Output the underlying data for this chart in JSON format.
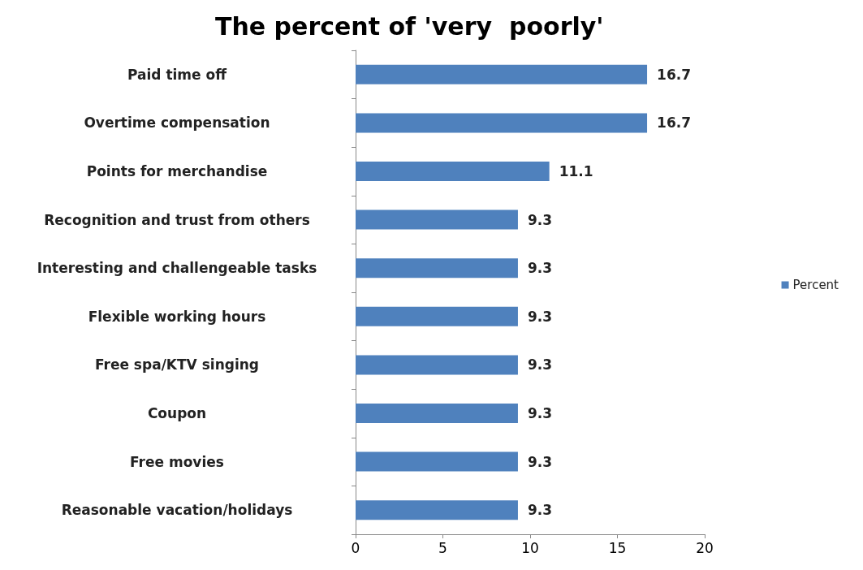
{
  "chart_data": {
    "type": "bar",
    "orientation": "horizontal",
    "title": "The percent of 'very  poorly'",
    "categories": [
      "Paid time off",
      "Overtime compensation",
      "Points for merchandise",
      "Recognition and trust from others",
      "Interesting and challengeable tasks",
      "Flexible working hours",
      "Free spa/KTV singing",
      "Coupon",
      "Free movies",
      "Reasonable vacation/holidays"
    ],
    "series": [
      {
        "name": "Percent",
        "color": "#4f81bd",
        "values": [
          16.7,
          16.7,
          11.1,
          9.3,
          9.3,
          9.3,
          9.3,
          9.3,
          9.3,
          9.3
        ]
      }
    ],
    "xlim": [
      0,
      20
    ],
    "xticks": [
      0,
      5,
      10,
      15,
      20
    ],
    "data_labels": true,
    "legend": "right",
    "grid": false
  }
}
